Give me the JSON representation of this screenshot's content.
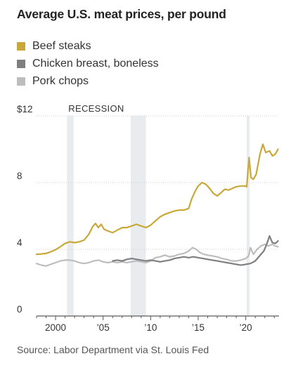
{
  "chart_data": {
    "type": "line",
    "title": "Average U.S. meat prices, per pound",
    "source": "Source: Labor Department via St. Louis Fed",
    "ylim": [
      0,
      12
    ],
    "xlim": [
      1998,
      2023.5
    ],
    "y_ticks": [
      {
        "value": 0,
        "label": "0"
      },
      {
        "value": 4,
        "label": "4"
      },
      {
        "value": 8,
        "label": "8"
      },
      {
        "value": 12,
        "label": "$12"
      }
    ],
    "x_ticks": [
      {
        "value": 2000,
        "label": "2000"
      },
      {
        "value": 2005,
        "label": "’05"
      },
      {
        "value": 2010,
        "label": "’10"
      },
      {
        "value": 2015,
        "label": "’15"
      },
      {
        "value": 2020,
        "label": "’20"
      }
    ],
    "grid": true,
    "legend_position": "top-left",
    "recession_label": "RECESSION",
    "recessions": [
      [
        2001.2,
        2001.9
      ],
      [
        2007.9,
        2009.5
      ],
      [
        2020.1,
        2020.4
      ]
    ],
    "series": [
      {
        "name": "Beef steaks",
        "color": "#c9a83a",
        "points": [
          [
            1998.0,
            3.7
          ],
          [
            1998.5,
            3.72
          ],
          [
            1999.0,
            3.75
          ],
          [
            1999.5,
            3.85
          ],
          [
            2000.0,
            3.98
          ],
          [
            2000.5,
            4.15
          ],
          [
            2001.0,
            4.35
          ],
          [
            2001.5,
            4.45
          ],
          [
            2002.0,
            4.4
          ],
          [
            2002.5,
            4.45
          ],
          [
            2003.0,
            4.55
          ],
          [
            2003.5,
            4.9
          ],
          [
            2003.9,
            5.35
          ],
          [
            2004.2,
            5.55
          ],
          [
            2004.5,
            5.3
          ],
          [
            2004.8,
            5.5
          ],
          [
            2005.1,
            5.2
          ],
          [
            2005.5,
            5.1
          ],
          [
            2006.0,
            5.0
          ],
          [
            2006.5,
            5.15
          ],
          [
            2007.0,
            5.3
          ],
          [
            2007.5,
            5.3
          ],
          [
            2008.0,
            5.4
          ],
          [
            2008.5,
            5.5
          ],
          [
            2009.0,
            5.4
          ],
          [
            2009.5,
            5.3
          ],
          [
            2010.0,
            5.45
          ],
          [
            2010.5,
            5.7
          ],
          [
            2011.0,
            5.95
          ],
          [
            2011.5,
            6.1
          ],
          [
            2012.0,
            6.2
          ],
          [
            2012.5,
            6.3
          ],
          [
            2013.0,
            6.35
          ],
          [
            2013.5,
            6.35
          ],
          [
            2014.0,
            6.45
          ],
          [
            2014.3,
            7.0
          ],
          [
            2014.7,
            7.5
          ],
          [
            2015.0,
            7.8
          ],
          [
            2015.4,
            8.0
          ],
          [
            2015.8,
            7.9
          ],
          [
            2016.2,
            7.65
          ],
          [
            2016.6,
            7.35
          ],
          [
            2017.0,
            7.2
          ],
          [
            2017.4,
            7.4
          ],
          [
            2017.8,
            7.6
          ],
          [
            2018.2,
            7.55
          ],
          [
            2018.6,
            7.65
          ],
          [
            2019.0,
            7.75
          ],
          [
            2019.5,
            7.8
          ],
          [
            2019.9,
            7.8
          ],
          [
            2020.1,
            7.75
          ],
          [
            2020.35,
            9.5
          ],
          [
            2020.55,
            8.3
          ],
          [
            2020.8,
            8.2
          ],
          [
            2021.1,
            8.5
          ],
          [
            2021.5,
            9.7
          ],
          [
            2021.8,
            10.3
          ],
          [
            2022.1,
            9.8
          ],
          [
            2022.5,
            9.9
          ],
          [
            2022.8,
            9.6
          ],
          [
            2023.1,
            9.7
          ],
          [
            2023.4,
            10.0
          ]
        ]
      },
      {
        "name": "Chicken breast, boneless",
        "color": "#7f7f7f",
        "points": [
          [
            2006.0,
            3.3
          ],
          [
            2006.5,
            3.35
          ],
          [
            2007.0,
            3.3
          ],
          [
            2007.5,
            3.4
          ],
          [
            2008.0,
            3.45
          ],
          [
            2008.5,
            3.4
          ],
          [
            2009.0,
            3.35
          ],
          [
            2009.5,
            3.3
          ],
          [
            2010.0,
            3.35
          ],
          [
            2010.5,
            3.3
          ],
          [
            2011.0,
            3.25
          ],
          [
            2011.5,
            3.3
          ],
          [
            2012.0,
            3.35
          ],
          [
            2012.5,
            3.45
          ],
          [
            2013.0,
            3.5
          ],
          [
            2013.5,
            3.55
          ],
          [
            2014.0,
            3.5
          ],
          [
            2014.5,
            3.55
          ],
          [
            2015.0,
            3.5
          ],
          [
            2015.5,
            3.45
          ],
          [
            2016.0,
            3.4
          ],
          [
            2016.5,
            3.35
          ],
          [
            2017.0,
            3.3
          ],
          [
            2017.5,
            3.25
          ],
          [
            2018.0,
            3.2
          ],
          [
            2018.5,
            3.15
          ],
          [
            2019.0,
            3.1
          ],
          [
            2019.5,
            3.05
          ],
          [
            2020.0,
            3.1
          ],
          [
            2020.5,
            3.15
          ],
          [
            2021.0,
            3.3
          ],
          [
            2021.3,
            3.5
          ],
          [
            2021.6,
            3.7
          ],
          [
            2021.9,
            3.9
          ],
          [
            2022.2,
            4.3
          ],
          [
            2022.5,
            4.8
          ],
          [
            2022.8,
            4.4
          ],
          [
            2023.1,
            4.35
          ],
          [
            2023.4,
            4.5
          ]
        ]
      },
      {
        "name": "Pork chops",
        "color": "#bdbdbd",
        "points": [
          [
            1998.0,
            3.15
          ],
          [
            1998.5,
            3.05
          ],
          [
            1999.0,
            3.0
          ],
          [
            1999.5,
            3.1
          ],
          [
            2000.0,
            3.2
          ],
          [
            2000.5,
            3.3
          ],
          [
            2001.0,
            3.35
          ],
          [
            2001.5,
            3.35
          ],
          [
            2002.0,
            3.3
          ],
          [
            2002.5,
            3.2
          ],
          [
            2003.0,
            3.15
          ],
          [
            2003.5,
            3.2
          ],
          [
            2004.0,
            3.3
          ],
          [
            2004.5,
            3.35
          ],
          [
            2005.0,
            3.25
          ],
          [
            2005.5,
            3.2
          ],
          [
            2006.0,
            3.25
          ],
          [
            2006.5,
            3.2
          ],
          [
            2007.0,
            3.25
          ],
          [
            2007.5,
            3.2
          ],
          [
            2008.0,
            3.25
          ],
          [
            2008.5,
            3.3
          ],
          [
            2009.0,
            3.25
          ],
          [
            2009.5,
            3.2
          ],
          [
            2010.0,
            3.3
          ],
          [
            2010.5,
            3.5
          ],
          [
            2011.0,
            3.55
          ],
          [
            2011.5,
            3.65
          ],
          [
            2012.0,
            3.55
          ],
          [
            2012.5,
            3.6
          ],
          [
            2013.0,
            3.7
          ],
          [
            2013.5,
            3.75
          ],
          [
            2014.0,
            3.9
          ],
          [
            2014.4,
            4.1
          ],
          [
            2014.8,
            4.0
          ],
          [
            2015.2,
            3.8
          ],
          [
            2015.6,
            3.7
          ],
          [
            2016.0,
            3.65
          ],
          [
            2016.5,
            3.6
          ],
          [
            2017.0,
            3.55
          ],
          [
            2017.5,
            3.45
          ],
          [
            2018.0,
            3.4
          ],
          [
            2018.5,
            3.3
          ],
          [
            2019.0,
            3.3
          ],
          [
            2019.5,
            3.35
          ],
          [
            2020.0,
            3.45
          ],
          [
            2020.3,
            3.6
          ],
          [
            2020.5,
            4.1
          ],
          [
            2020.8,
            3.7
          ],
          [
            2021.2,
            4.0
          ],
          [
            2021.6,
            4.2
          ],
          [
            2022.0,
            4.3
          ],
          [
            2022.4,
            4.2
          ],
          [
            2022.8,
            4.3
          ],
          [
            2023.1,
            4.2
          ],
          [
            2023.4,
            4.15
          ]
        ]
      }
    ]
  }
}
